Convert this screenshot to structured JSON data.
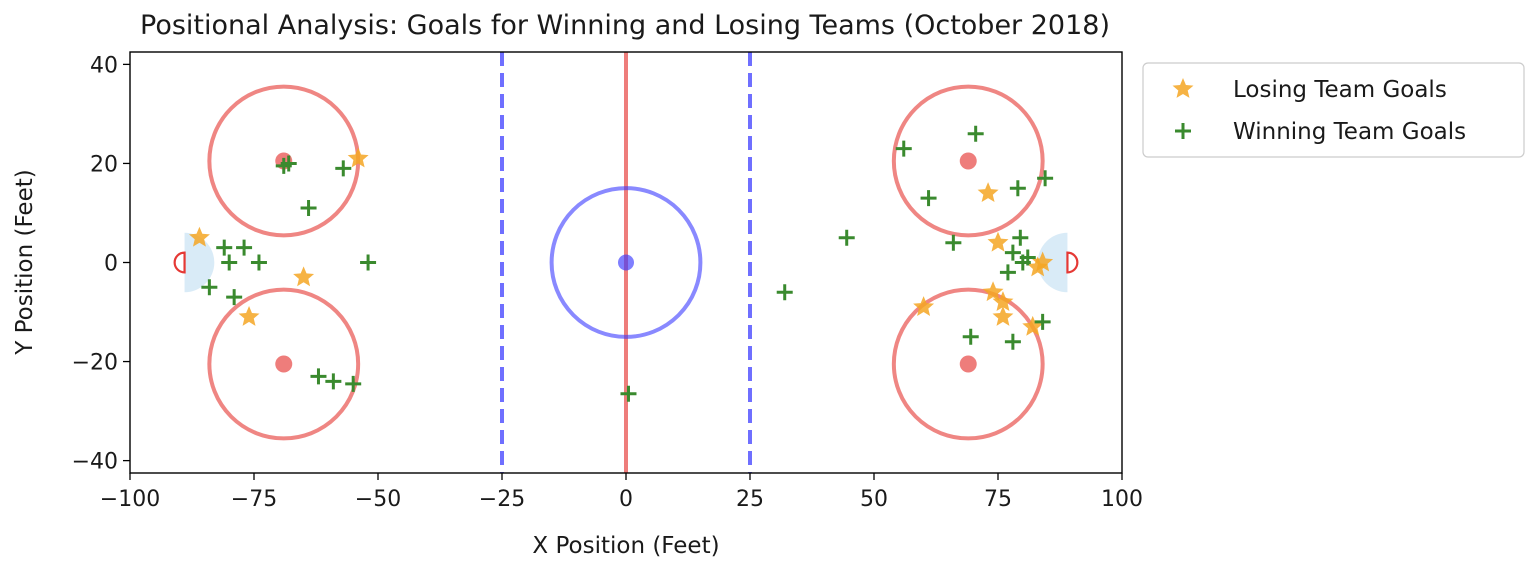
{
  "chart_data": {
    "type": "scatter",
    "title": "Positional Analysis: Goals for Winning and Losing Teams (October 2018)",
    "xlabel": "X Position (Feet)",
    "ylabel": "Y Position (Feet)",
    "xlim": [
      -100,
      100
    ],
    "ylim": [
      -42.5,
      42.5
    ],
    "xticks": [
      -100,
      -75,
      -50,
      -25,
      0,
      25,
      50,
      75,
      100
    ],
    "yticks": [
      -40,
      -20,
      0,
      20,
      40
    ],
    "xtick_labels": [
      "−100",
      "−75",
      "−50",
      "−25",
      "0",
      "25",
      "50",
      "75",
      "100"
    ],
    "ytick_labels": [
      "−40",
      "−20",
      "0",
      "20",
      "40"
    ],
    "grid": false,
    "legend_position": "outside-top-right",
    "rink": {
      "center_line_x": 0,
      "blue_lines_x": [
        -25,
        25
      ],
      "center_circle": {
        "x": 0,
        "y": 0,
        "r": 15
      },
      "faceoff_circles": [
        {
          "x": -69,
          "y": 20.5,
          "r": 15
        },
        {
          "x": -69,
          "y": -20.5,
          "r": 15
        },
        {
          "x": 69,
          "y": 20.5,
          "r": 15
        },
        {
          "x": 69,
          "y": -20.5,
          "r": 15
        }
      ],
      "faceoff_dots": [
        {
          "x": -69,
          "y": 20.5
        },
        {
          "x": -69,
          "y": -20.5
        },
        {
          "x": 69,
          "y": 20.5
        },
        {
          "x": 69,
          "y": -20.5
        }
      ],
      "goal_lines_x": [
        -89,
        89
      ],
      "crease_radius": 6,
      "colors": {
        "red": "#e8524f",
        "blue": "#3b3bff",
        "blue_line": "#6f6fff",
        "crease": "#cfe6f5"
      }
    },
    "series": [
      {
        "name": "Losing Team Goals",
        "marker": "star",
        "color": "#f5a623",
        "points": [
          [
            -86,
            5
          ],
          [
            -76,
            -11
          ],
          [
            -65,
            -3
          ],
          [
            -54,
            21
          ],
          [
            60,
            -9
          ],
          [
            73,
            14
          ],
          [
            74,
            -6
          ],
          [
            75,
            4
          ],
          [
            76,
            -8
          ],
          [
            76,
            -11
          ],
          [
            82,
            -13
          ],
          [
            83,
            -1
          ],
          [
            84,
            0
          ]
        ]
      },
      {
        "name": "Winning Team Goals",
        "marker": "plus",
        "color": "#3a8a2e",
        "points": [
          [
            -68,
            20
          ],
          [
            -69,
            19.5
          ],
          [
            -57,
            19
          ],
          [
            -64,
            11
          ],
          [
            -81,
            3
          ],
          [
            -77,
            3
          ],
          [
            -80,
            0
          ],
          [
            -74,
            0
          ],
          [
            -84,
            -5
          ],
          [
            -79,
            -7
          ],
          [
            -52,
            0
          ],
          [
            -62,
            -23
          ],
          [
            -59,
            -24
          ],
          [
            -55,
            -24.5
          ],
          [
            0.5,
            -26.5
          ],
          [
            32,
            -6
          ],
          [
            44.5,
            5
          ],
          [
            56,
            23
          ],
          [
            70.5,
            26
          ],
          [
            61,
            13
          ],
          [
            79,
            15
          ],
          [
            84.5,
            17
          ],
          [
            66,
            4
          ],
          [
            78,
            2
          ],
          [
            79.5,
            5
          ],
          [
            80,
            0
          ],
          [
            81,
            1
          ],
          [
            77,
            -2
          ],
          [
            69.5,
            -15
          ],
          [
            78,
            -16
          ],
          [
            84,
            -12
          ]
        ]
      }
    ]
  }
}
